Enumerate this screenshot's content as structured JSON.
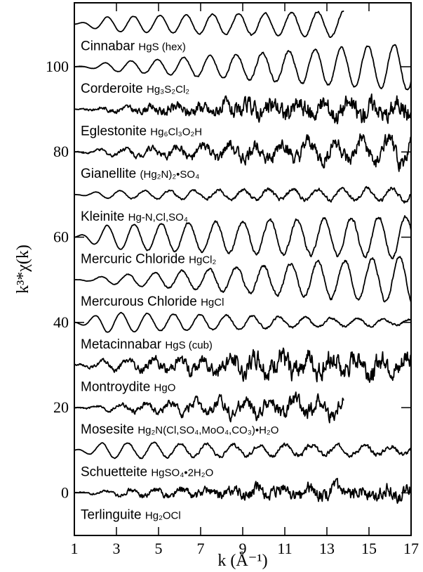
{
  "chart_data": {
    "type": "line",
    "title": "",
    "xlabel": "k (Å⁻¹)",
    "ylabel": "k³*χ(k)",
    "xlim": [
      1,
      17
    ],
    "ylim": [
      -10,
      115
    ],
    "x_ticks": [
      1,
      3,
      5,
      7,
      9,
      11,
      13,
      15,
      17
    ],
    "y_ticks": [
      0,
      20,
      40,
      60,
      80,
      100
    ],
    "grid": false,
    "legend": "labels placed under each trace",
    "series": [
      {
        "name": "Cinnabar",
        "formula": "HgS (hex)",
        "baseline": 110,
        "x_end": 13.8,
        "freq": 1.6,
        "amp_start": 1.5,
        "amp_end": 3.5,
        "noise": 0.3,
        "phase": 0.0
      },
      {
        "name": "Corderoite",
        "formula": "Hg₃S₂Cl₂",
        "baseline": 100,
        "x_end": 17,
        "freq": 1.6,
        "amp_start": 0.5,
        "amp_end": 5.5,
        "noise": 0.4,
        "phase": 0.6
      },
      {
        "name": "Eglestonite",
        "formula": "Hg₆Cl₃O₂H",
        "baseline": 90,
        "x_end": 17,
        "freq": 1.7,
        "amp_start": 0.3,
        "amp_end": 1.5,
        "noise": 3.5,
        "phase": 1.1
      },
      {
        "name": "Gianellite",
        "formula": "(Hg₂N)₂•SO₄",
        "baseline": 80,
        "x_end": 17,
        "freq": 1.6,
        "amp_start": 0.5,
        "amp_end": 3.0,
        "noise": 2.8,
        "phase": 2.0
      },
      {
        "name": "Kleinite",
        "formula": "Hg-N,Cl,SO₄",
        "baseline": 70,
        "x_end": 17,
        "freq": 1.7,
        "amp_start": 0.8,
        "amp_end": 1.5,
        "noise": 0.7,
        "phase": 2.6
      },
      {
        "name": "Mercuric Chloride",
        "formula": "HgCl₂",
        "baseline": 60,
        "x_end": 17,
        "freq": 1.55,
        "amp_start": 2.5,
        "amp_end": 5.0,
        "noise": 0.6,
        "phase": 0.3
      },
      {
        "name": "Mercurous Chloride",
        "formula": "HgCl",
        "baseline": 50,
        "x_end": 17,
        "freq": 1.55,
        "amp_start": 0.5,
        "amp_end": 5.5,
        "noise": 0.6,
        "phase": 1.8
      },
      {
        "name": "Metacinnabar",
        "formula": "HgS (cub)",
        "baseline": 40,
        "x_end": 17,
        "freq": 1.6,
        "amp_start": 2.5,
        "amp_end": 0.6,
        "noise": 0.4,
        "phase": 3.0
      },
      {
        "name": "Montroydite",
        "formula": "HgO",
        "baseline": 30,
        "x_end": 17,
        "freq": 1.65,
        "amp_start": 1.0,
        "amp_end": 2.0,
        "noise": 4.0,
        "phase": 0.9
      },
      {
        "name": "Mosesite",
        "formula": "Hg₂N(Cl,SO₄,MoO₄,CO₃)•H₂O",
        "baseline": 20,
        "x_end": 13.8,
        "freq": 1.7,
        "amp_start": 0.5,
        "amp_end": 2.5,
        "noise": 2.8,
        "phase": 2.3
      },
      {
        "name": "Schuetteite",
        "formula": "HgSO₄•2H₂O",
        "baseline": 10,
        "x_end": 17,
        "freq": 1.6,
        "amp_start": 2.0,
        "amp_end": 0.8,
        "noise": 0.8,
        "phase": 1.4
      },
      {
        "name": "Terlinguite",
        "formula": "Hg₂OCl",
        "baseline": 0,
        "x_end": 17,
        "freq": 1.65,
        "amp_start": 0.5,
        "amp_end": 1.2,
        "noise": 2.5,
        "phase": 0.2
      }
    ]
  }
}
